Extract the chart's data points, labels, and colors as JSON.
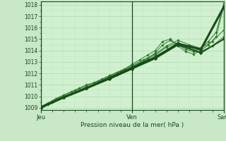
{
  "xlabel": "Pression niveau de la mer( hPa )",
  "bg_color": "#c8e8c8",
  "plot_bg_color": "#d0f0d0",
  "grid_major_color": "#b0d8b0",
  "grid_minor_color": "#c0e4c0",
  "line_color": "#2d7a2d",
  "dark_line_color": "#1a4a1a",
  "x_tick_labels": [
    "Jeu",
    "Ven",
    "Sam"
  ],
  "ylim": [
    1008.8,
    1018.3
  ],
  "yticks": [
    1009,
    1010,
    1011,
    1012,
    1013,
    1014,
    1015,
    1016,
    1017,
    1018
  ],
  "n_days": 2,
  "hours_per_day": 24,
  "total_hours": 48,
  "line1_h": [
    0,
    2,
    4,
    6,
    8,
    10,
    12,
    14,
    16,
    18,
    20,
    22,
    24,
    26,
    28,
    30,
    32,
    34,
    36,
    38,
    40,
    42,
    44,
    46,
    48
  ],
  "line1_y": [
    1009.0,
    1009.3,
    1009.7,
    1010.0,
    1010.2,
    1010.5,
    1010.8,
    1011.0,
    1011.3,
    1011.6,
    1011.9,
    1012.2,
    1012.5,
    1012.9,
    1013.3,
    1013.8,
    1014.5,
    1014.9,
    1014.4,
    1013.9,
    1013.7,
    1014.0,
    1014.5,
    1015.2,
    1017.9
  ],
  "line2_h": [
    0,
    2,
    4,
    6,
    8,
    10,
    12,
    14,
    16,
    18,
    20,
    22,
    24,
    26,
    28,
    30,
    32,
    34,
    36,
    38,
    40,
    42,
    44,
    46,
    48
  ],
  "line2_y": [
    1009.1,
    1009.4,
    1009.8,
    1010.1,
    1010.4,
    1010.7,
    1011.0,
    1011.2,
    1011.5,
    1011.8,
    1012.1,
    1012.4,
    1012.8,
    1013.2,
    1013.6,
    1014.0,
    1014.8,
    1015.0,
    1014.5,
    1014.1,
    1013.9,
    1014.2,
    1014.8,
    1015.6,
    1018.1
  ],
  "line3_h": [
    0,
    3,
    6,
    9,
    12,
    15,
    18,
    21,
    24,
    27,
    30,
    33,
    36,
    39,
    42,
    45,
    48
  ],
  "line3_y": [
    1009.0,
    1009.5,
    1010.0,
    1010.4,
    1010.8,
    1011.2,
    1011.7,
    1012.1,
    1012.6,
    1013.1,
    1013.6,
    1014.3,
    1014.7,
    1014.2,
    1013.9,
    1014.4,
    1015.2
  ],
  "line4_h": [
    0,
    3,
    6,
    9,
    12,
    15,
    18,
    21,
    24,
    27,
    30,
    33,
    36,
    39,
    42,
    45,
    48
  ],
  "line4_y": [
    1009.1,
    1009.6,
    1010.1,
    1010.5,
    1010.9,
    1011.3,
    1011.8,
    1012.2,
    1012.7,
    1013.2,
    1013.7,
    1014.4,
    1014.9,
    1014.5,
    1014.2,
    1014.8,
    1015.8
  ],
  "thick1_h": [
    0,
    6,
    12,
    18,
    24,
    30,
    36,
    42,
    48
  ],
  "thick1_y": [
    1009.0,
    1009.9,
    1010.7,
    1011.6,
    1012.5,
    1013.4,
    1014.6,
    1014.1,
    1017.8
  ],
  "thick2_h": [
    0,
    6,
    12,
    18,
    24,
    30,
    36,
    42,
    48
  ],
  "thick2_y": [
    1009.0,
    1009.9,
    1010.7,
    1011.5,
    1012.4,
    1013.3,
    1014.5,
    1013.8,
    1015.0
  ]
}
